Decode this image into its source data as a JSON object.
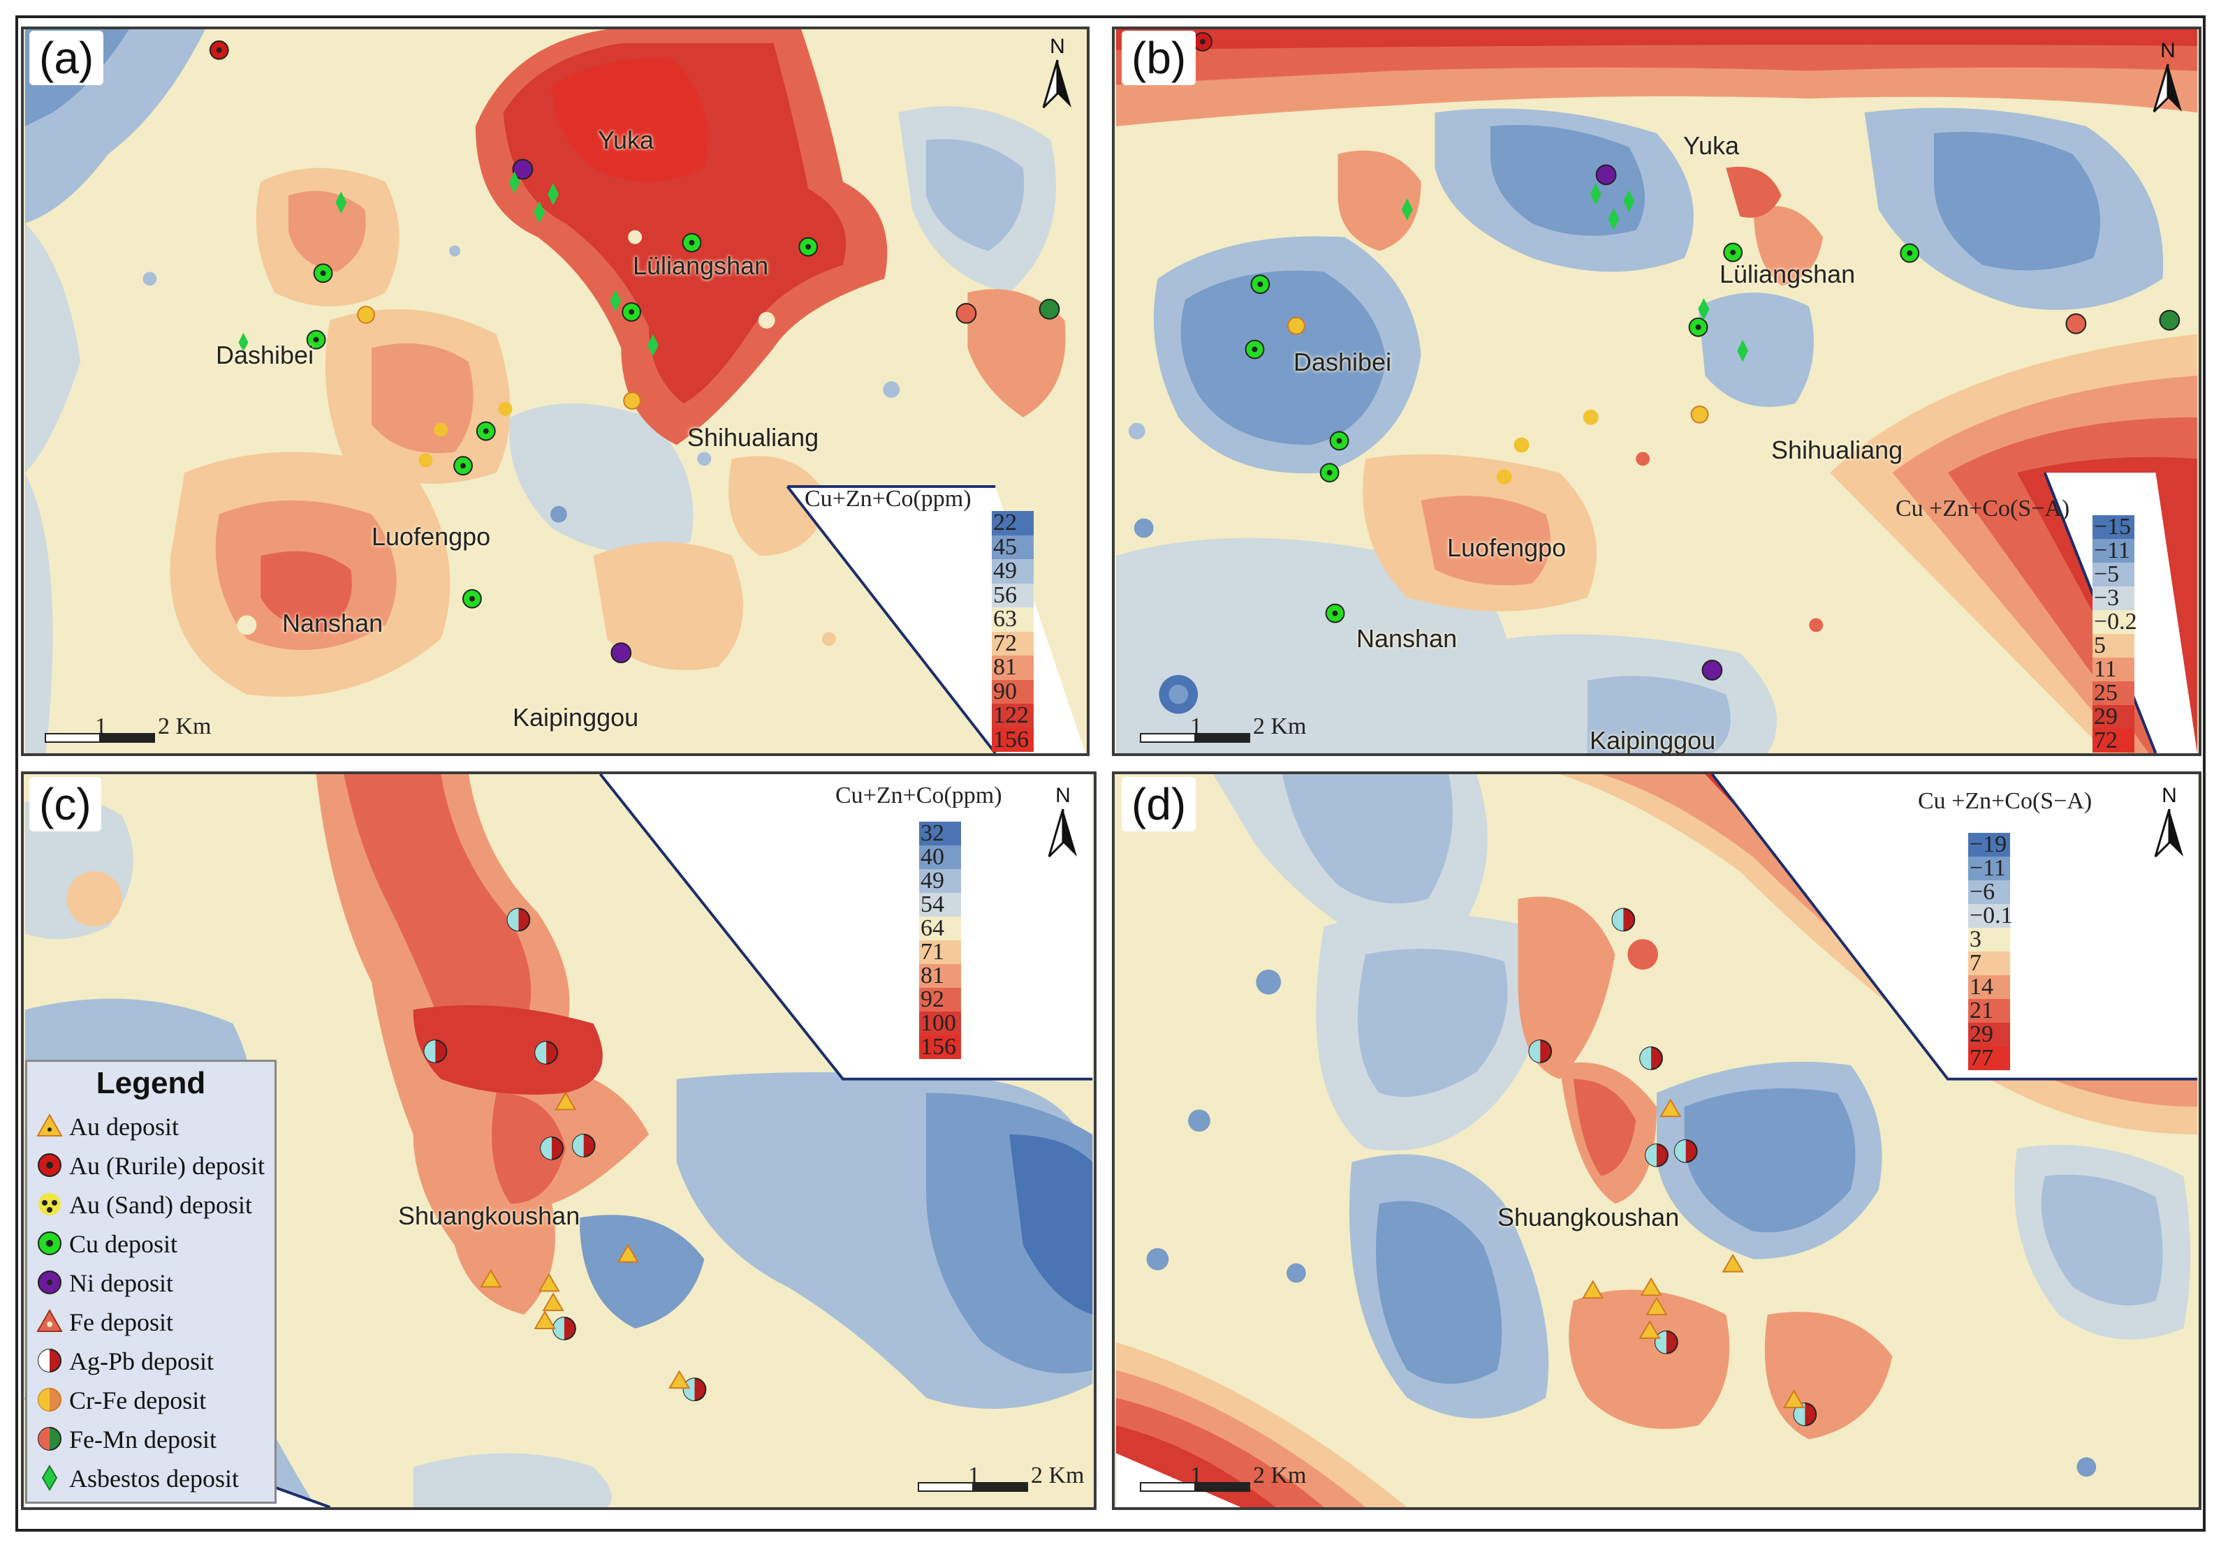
{
  "panels": {
    "a": {
      "label": "(a)",
      "places": {
        "yuka": "Yuka",
        "luliangshan": "Lüliangshan",
        "dashibei": "Dashibei",
        "shihualiang": "Shihualiang",
        "luofengpo": "Luofengpo",
        "nanshan": "Nanshan",
        "kaipinggou": "Kaipinggou"
      },
      "colorbar": {
        "title": "Cu+Zn+Co(ppm)",
        "levels": [
          "22",
          "45",
          "49",
          "56",
          "63",
          "72",
          "81",
          "90",
          "122",
          "156"
        ]
      },
      "scale": {
        "one": "1",
        "two": "2 Km"
      },
      "north": "N"
    },
    "b": {
      "label": "(b)",
      "places": {
        "yuka": "Yuka",
        "luliangshan": "Lüliangshan",
        "dashibei": "Dashibei",
        "shihualiang": "Shihualiang",
        "luofengpo": "Luofengpo",
        "nanshan": "Nanshan",
        "kaipinggou": "Kaipinggou"
      },
      "colorbar": {
        "title": "Cu +Zn+Co(S−A)",
        "levels": [
          "−15",
          "−11",
          "−5",
          "−3",
          "−0.2",
          "5",
          "11",
          "25",
          "29",
          "72"
        ]
      },
      "scale": {
        "one": "1",
        "two": "2 Km"
      },
      "north": "N"
    },
    "c": {
      "label": "(c)",
      "places": {
        "shuangkoushan": "Shuangkoushan"
      },
      "colorbar": {
        "title": "Cu+Zn+Co(ppm)",
        "levels": [
          "32",
          "40",
          "49",
          "54",
          "64",
          "71",
          "81",
          "92",
          "100",
          "156"
        ]
      },
      "scale": {
        "one": "1",
        "two": "2 Km"
      },
      "north": "N"
    },
    "d": {
      "label": "(d)",
      "places": {
        "shuangkoushan": "Shuangkoushan"
      },
      "colorbar": {
        "title": "Cu +Zn+Co(S−A)",
        "levels": [
          "−19",
          "−11",
          "−6",
          "−0.1",
          "3",
          "7",
          "14",
          "21",
          "29",
          "77"
        ]
      },
      "scale": {
        "one": "1",
        "two": "2 Km"
      },
      "north": "N"
    }
  },
  "colors": {
    "ramp": [
      "#4a74b4",
      "#7a9cc8",
      "#a9bfd9",
      "#cfd9e0",
      "#f3ecc6",
      "#f6c99a",
      "#ef9a77",
      "#e4654f",
      "#d63a31",
      "#e03028"
    ],
    "cu": "#22dd22",
    "ni": "#6a1a9a",
    "au_rutile": "#d01818",
    "asbestos": "#22cc44",
    "crfe": "#f2c230",
    "agpb": "#b81c1c"
  },
  "legend": {
    "title": "Legend",
    "items": [
      "Au deposit",
      "Au (Rurile) deposit",
      "Au (Sand) deposit",
      "Cu deposit",
      "Ni deposit",
      "Fe deposit",
      "Ag-Pb deposit",
      "Cr-Fe deposit",
      "Fe-Mn deposit",
      "Asbestos deposit"
    ]
  }
}
